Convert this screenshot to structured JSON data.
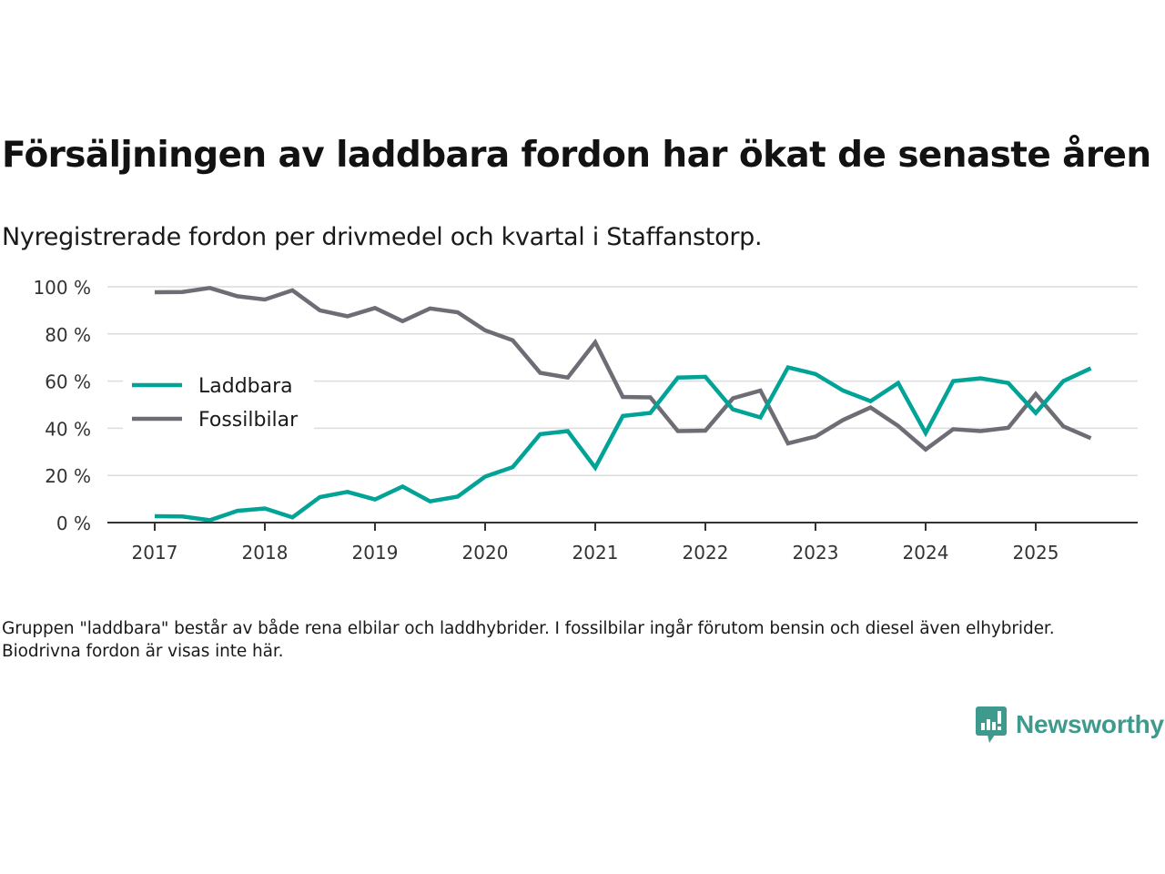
{
  "header": {
    "title": "Försäljningen av laddbara fordon har ökat de senaste åren",
    "subtitle": "Nyregistrerade fordon per drivmedel och kvartal i Staffanstorp."
  },
  "footnote": "Gruppen \"laddbara\" består av både rena elbilar och laddhybrider. I fossilbilar ingår förutom bensin och diesel även elhybrider. Biodrivna fordon är visas inte här.",
  "brand": {
    "name": "Newsworthy",
    "icon": "bar-chart-speech-bubble-icon",
    "color": "#3f9a8e"
  },
  "chart_data": {
    "type": "line",
    "title": "Försäljningen av laddbara fordon har ökat de senaste åren",
    "subtitle": "Nyregistrerade fordon per drivmedel och kvartal i Staffanstorp.",
    "xlabel": "",
    "ylabel": "",
    "x": [
      "2017Q1",
      "2017Q2",
      "2017Q3",
      "2017Q4",
      "2018Q1",
      "2018Q2",
      "2018Q3",
      "2018Q4",
      "2019Q1",
      "2019Q2",
      "2019Q3",
      "2019Q4",
      "2020Q1",
      "2020Q2",
      "2020Q3",
      "2020Q4",
      "2021Q1",
      "2021Q2",
      "2021Q3",
      "2021Q4",
      "2022Q1",
      "2022Q2",
      "2022Q3",
      "2022Q4",
      "2023Q1",
      "2023Q2",
      "2023Q3",
      "2023Q4",
      "2024Q1",
      "2024Q2",
      "2024Q3",
      "2024Q4",
      "2025Q1",
      "2025Q2",
      "2025Q3"
    ],
    "x_ticks": [
      "2017",
      "2018",
      "2019",
      "2020",
      "2021",
      "2022",
      "2023",
      "2024",
      "2025"
    ],
    "y_ticks": [
      0,
      20,
      40,
      60,
      80,
      100
    ],
    "y_tick_labels": [
      "0 %",
      "20 %",
      "40 %",
      "60 %",
      "80 %",
      "100 %"
    ],
    "ylim": [
      0,
      100
    ],
    "grid": true,
    "legend_position": "left-middle",
    "series": [
      {
        "name": "Laddbara",
        "color": "#00a396",
        "values": [
          2.7,
          2.6,
          1.0,
          5.0,
          6.0,
          2.2,
          10.8,
          13.0,
          9.8,
          15.3,
          9.0,
          11.0,
          19.5,
          23.5,
          37.5,
          38.8,
          23.3,
          45.2,
          46.5,
          61.5,
          61.8,
          48.0,
          44.6,
          65.8,
          63.0,
          56.0,
          51.5,
          59.2,
          38.0,
          60.0,
          61.2,
          59.2,
          46.5,
          60.0,
          65.4
        ]
      },
      {
        "name": "Fossilbilar",
        "color": "#6e6d75",
        "values": [
          97.7,
          97.8,
          99.5,
          96.0,
          94.6,
          98.5,
          90.0,
          87.5,
          91.0,
          85.4,
          90.8,
          89.2,
          81.5,
          77.3,
          63.5,
          61.5,
          76.5,
          53.3,
          53.1,
          38.8,
          39.0,
          52.7,
          56.0,
          33.6,
          36.5,
          43.5,
          48.8,
          41.0,
          31.0,
          39.6,
          38.8,
          40.2,
          54.5,
          40.8,
          35.8
        ]
      }
    ]
  }
}
